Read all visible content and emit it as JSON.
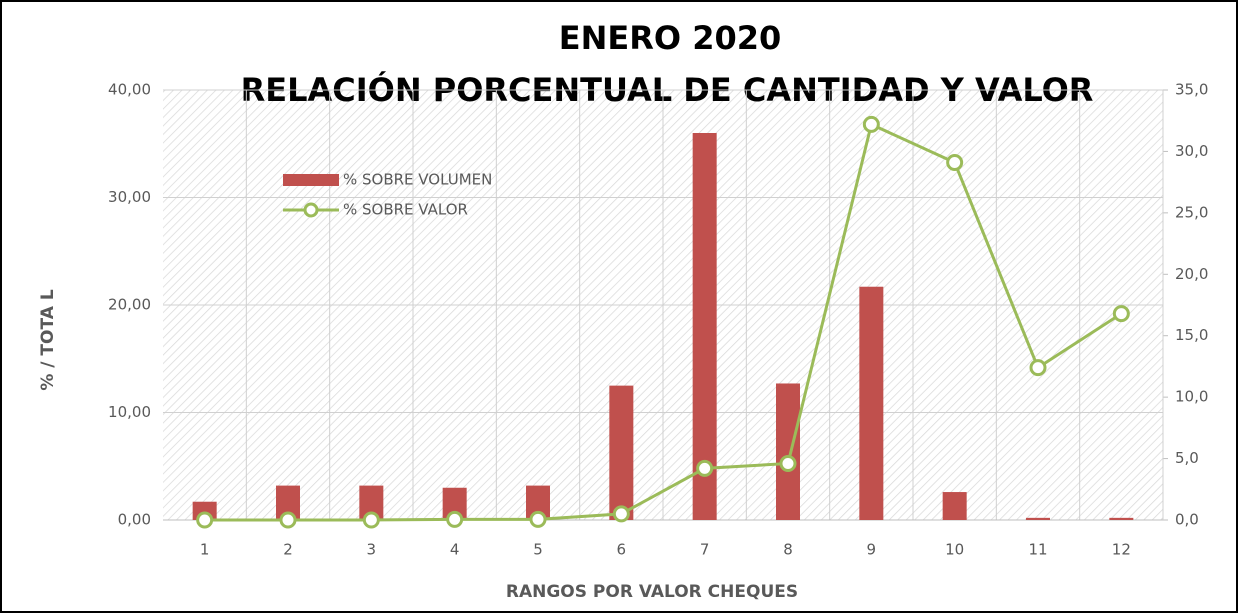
{
  "chart_data": {
    "type": "bar_line",
    "title": "ENERO 2020",
    "subtitle": "RELACIÓN PORCENTUAL DE CANTIDAD Y VALOR",
    "x_label": "RANGOS POR VALOR CHEQUES",
    "y_label": "% /  TOTA L",
    "categories": [
      "1",
      "2",
      "3",
      "4",
      "5",
      "6",
      "7",
      "8",
      "9",
      "10",
      "11",
      "12"
    ],
    "series": [
      {
        "name": "% SOBRE VOLUMEN",
        "type": "bar",
        "color": "#c0504d",
        "axis": "y",
        "values": [
          1.7,
          3.2,
          3.2,
          3.0,
          3.2,
          12.5,
          36.0,
          12.7,
          21.7,
          2.6,
          0.2,
          0.2
        ]
      },
      {
        "name": "% SOBRE VALOR",
        "type": "line",
        "color": "#9bbb59",
        "axis": "y2",
        "values": [
          0.0,
          0.0,
          0.0,
          0.05,
          0.05,
          0.5,
          4.2,
          4.6,
          32.2,
          29.1,
          12.4,
          16.8
        ]
      }
    ],
    "ylim": [
      0,
      40
    ],
    "yticks": [
      {
        "value": 0,
        "label": "0,00"
      },
      {
        "value": 10,
        "label": "10,00"
      },
      {
        "value": 20,
        "label": "20,00"
      },
      {
        "value": 30,
        "label": "30,00"
      },
      {
        "value": 40,
        "label": "40,00"
      }
    ],
    "y2lim": [
      0,
      35
    ],
    "y2ticks": [
      {
        "value": 0,
        "label": "0,0"
      },
      {
        "value": 5,
        "label": "5,0"
      },
      {
        "value": 10,
        "label": "10,0"
      },
      {
        "value": 15,
        "label": "15,0"
      },
      {
        "value": 20,
        "label": "20,0"
      },
      {
        "value": 25,
        "label": "25,0"
      },
      {
        "value": 30,
        "label": "30,0"
      },
      {
        "value": 35,
        "label": "35,0"
      }
    ],
    "grid": true,
    "legend": "upper left"
  }
}
